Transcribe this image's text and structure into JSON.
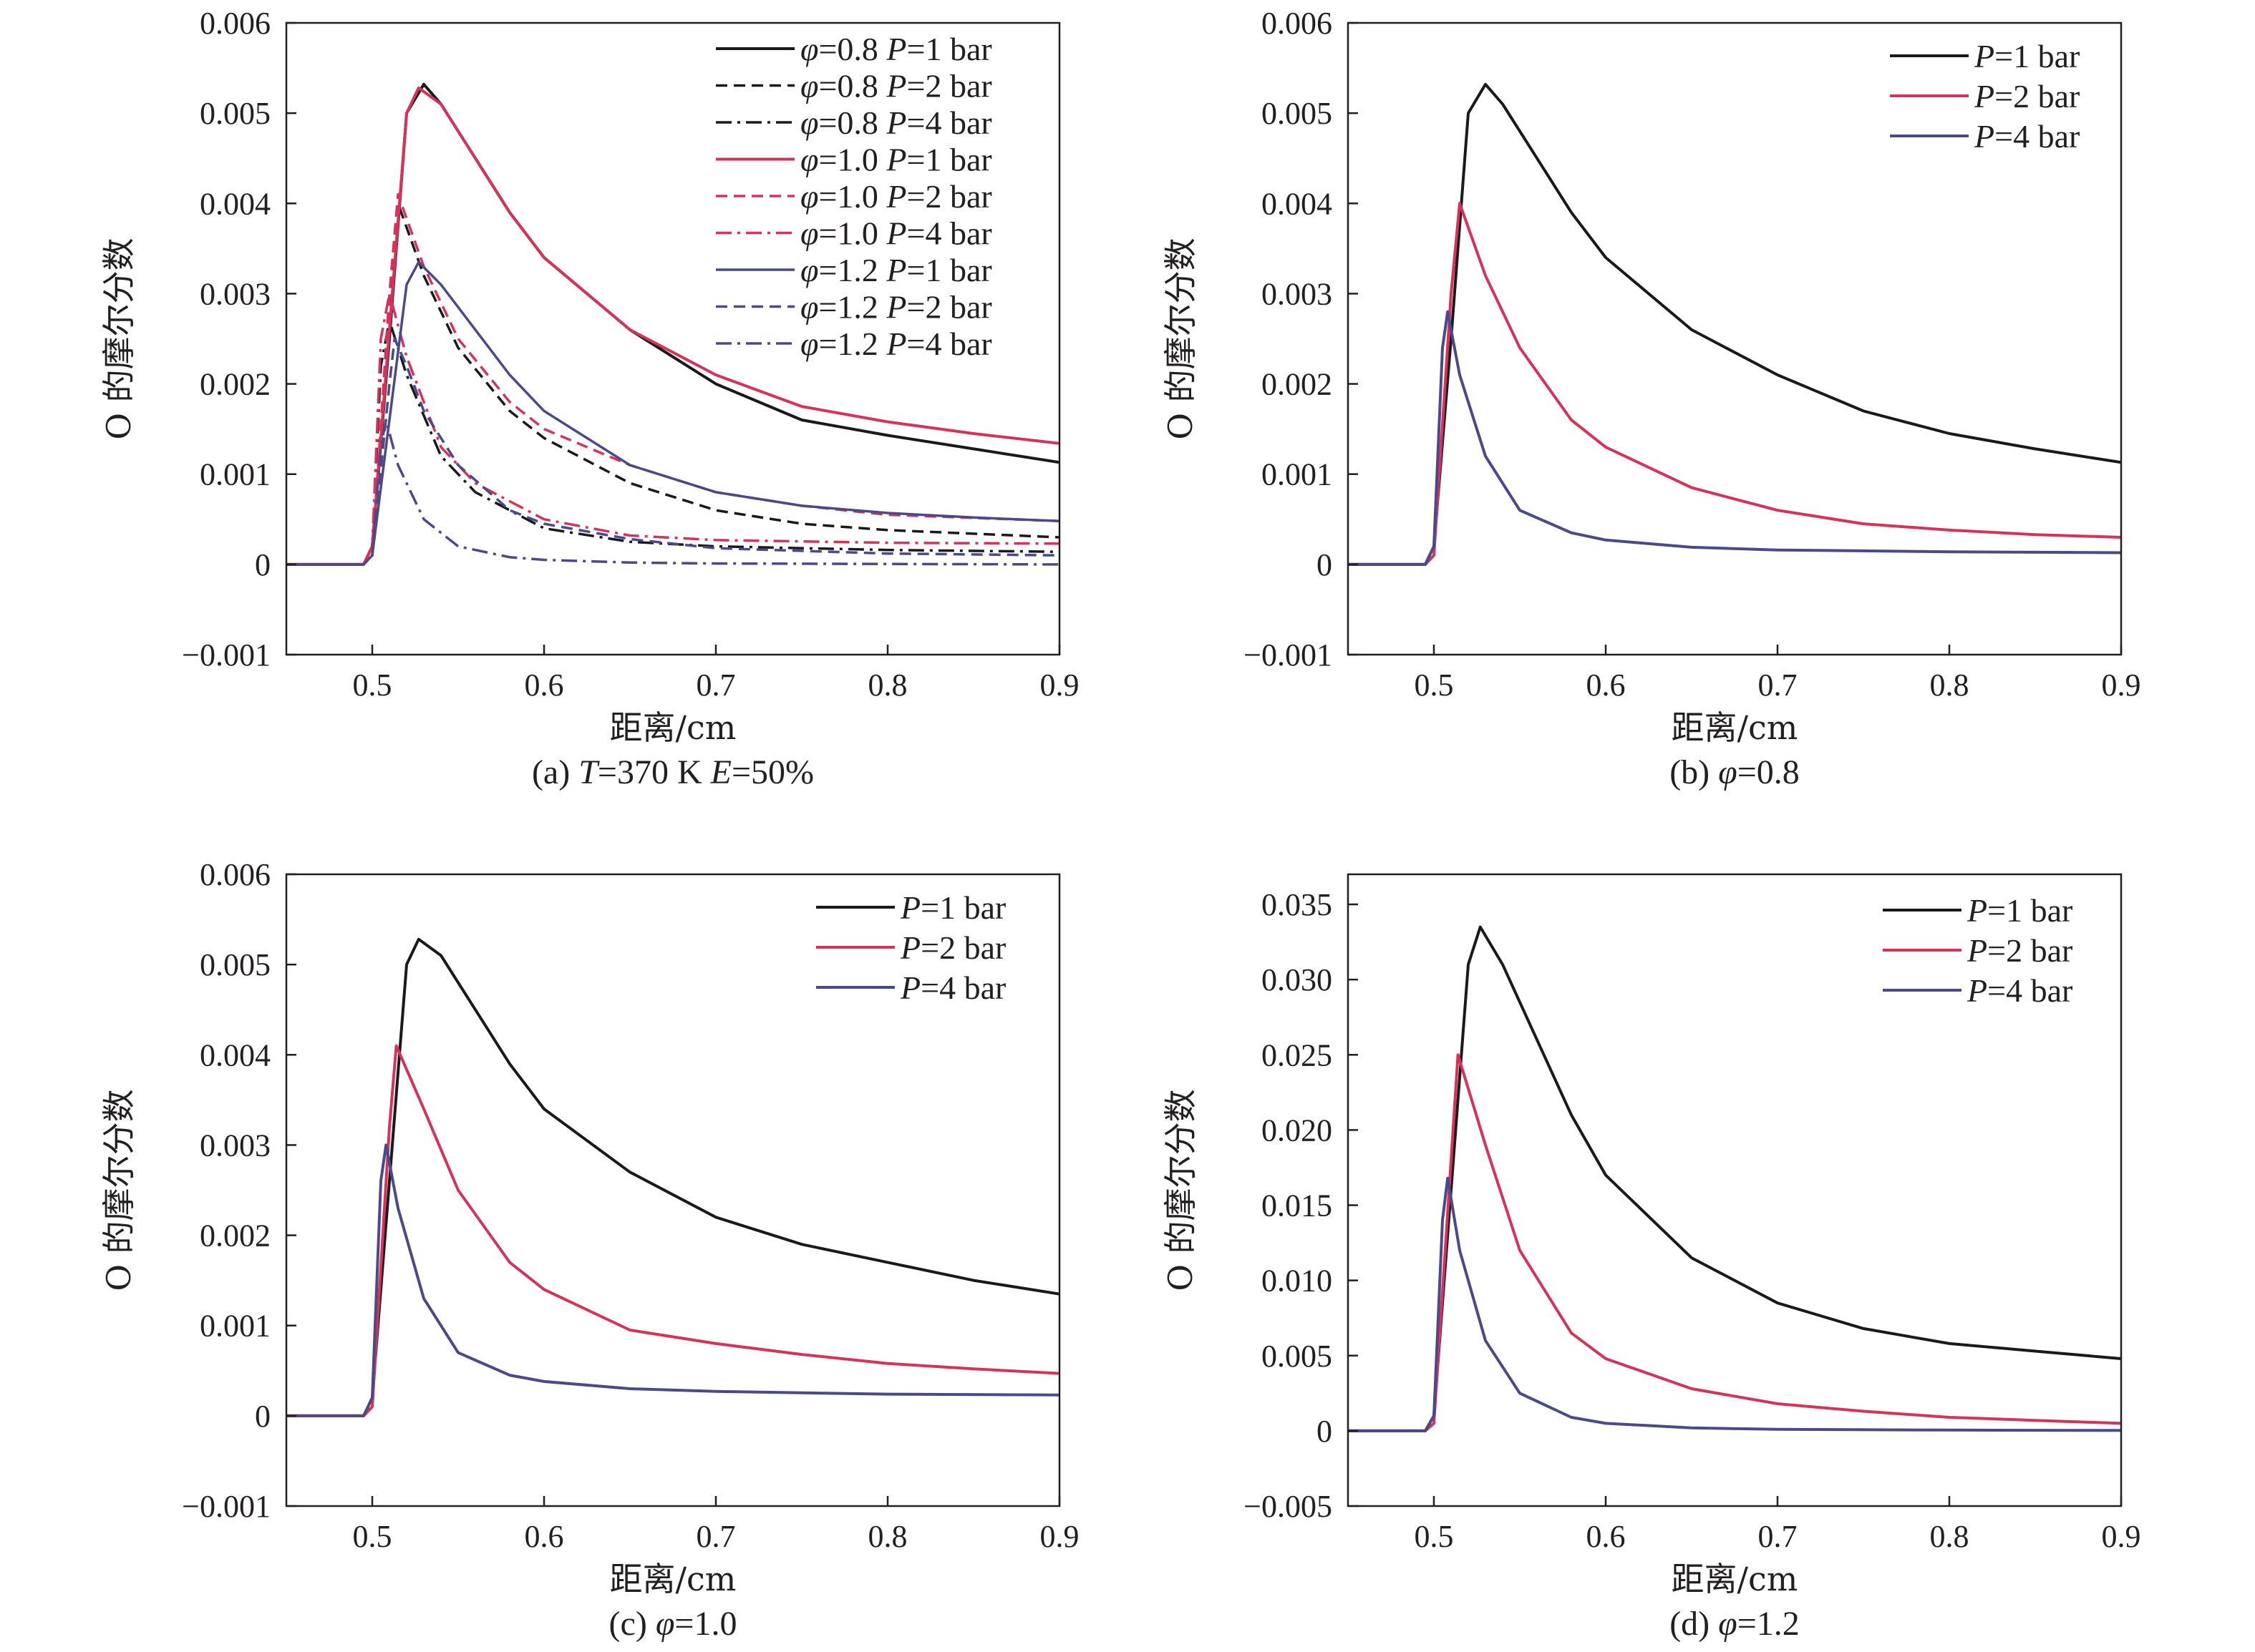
{
  "chart_data": [
    {
      "type": "line",
      "caption": "(a) T=370 K E=50%",
      "caption_parts": [
        "(a) ",
        "T",
        "=370 K ",
        "E",
        "=50%"
      ],
      "xlabel": "距离/cm",
      "ylabel": "O 的摩尔分数",
      "xlim": [
        0.45,
        0.9
      ],
      "ylim": [
        -0.001,
        0.006
      ],
      "xticks": [
        "0.5",
        "0.6",
        "0.7",
        "0.8",
        "0.9"
      ],
      "yticks": [
        "−0.001",
        "0",
        "0.001",
        "0.002",
        "0.003",
        "0.004",
        "0.005",
        "0.006"
      ],
      "grid": false,
      "legend_position": "top-right",
      "series": [
        {
          "name": "φ=0.8 P=1 bar",
          "phi": "0.8",
          "p": "1",
          "color": "#1a1a1a",
          "dash": "solid",
          "width": 4,
          "x": [
            0.45,
            0.495,
            0.5,
            0.51,
            0.52,
            0.53,
            0.54,
            0.56,
            0.58,
            0.6,
            0.65,
            0.7,
            0.75,
            0.8,
            0.85,
            0.9
          ],
          "y": [
            0,
            0,
            0.0002,
            0.0025,
            0.005,
            0.00532,
            0.0051,
            0.0045,
            0.0039,
            0.0034,
            0.0026,
            0.002,
            0.0016,
            0.00143,
            0.00128,
            0.00113
          ]
        },
        {
          "name": "φ=0.8 P=2 bar",
          "phi": "0.8",
          "p": "2",
          "color": "#1a1a1a",
          "dash": "16,9",
          "width": 3.5,
          "x": [
            0.45,
            0.495,
            0.5,
            0.51,
            0.515,
            0.53,
            0.55,
            0.58,
            0.6,
            0.65,
            0.7,
            0.75,
            0.8,
            0.9
          ],
          "y": [
            0,
            0,
            0.0001,
            0.0028,
            0.004,
            0.0032,
            0.0024,
            0.0017,
            0.0014,
            0.0009,
            0.0006,
            0.00045,
            0.00038,
            0.0003
          ]
        },
        {
          "name": "φ=0.8 P=4 bar",
          "phi": "0.8",
          "p": "4",
          "color": "#1a1a1a",
          "dash": "22,8,4,8",
          "width": 3.5,
          "x": [
            0.45,
            0.495,
            0.5,
            0.505,
            0.51,
            0.52,
            0.54,
            0.56,
            0.6,
            0.65,
            0.7,
            0.8,
            0.9
          ],
          "y": [
            0,
            0,
            0.0002,
            0.0022,
            0.0027,
            0.0021,
            0.0012,
            0.0008,
            0.0004,
            0.00025,
            0.0002,
            0.00016,
            0.00014
          ]
        },
        {
          "name": "φ=1.0 P=1 bar",
          "phi": "1.0",
          "p": "1",
          "color": "#d6325a",
          "dash": "solid",
          "width": 4,
          "x": [
            0.45,
            0.495,
            0.5,
            0.51,
            0.52,
            0.527,
            0.54,
            0.56,
            0.58,
            0.6,
            0.65,
            0.7,
            0.75,
            0.8,
            0.85,
            0.9
          ],
          "y": [
            0,
            0,
            0.0002,
            0.0026,
            0.005,
            0.00528,
            0.0051,
            0.0045,
            0.0039,
            0.0034,
            0.0026,
            0.0021,
            0.00175,
            0.00158,
            0.00145,
            0.00134
          ]
        },
        {
          "name": "φ=1.0 P=2 bar",
          "phi": "1.0",
          "p": "2",
          "color": "#d6325a",
          "dash": "16,9",
          "width": 3.5,
          "x": [
            0.45,
            0.495,
            0.5,
            0.51,
            0.515,
            0.53,
            0.55,
            0.58,
            0.6,
            0.65,
            0.7,
            0.75,
            0.8,
            0.9
          ],
          "y": [
            0,
            0,
            0.0001,
            0.003,
            0.0041,
            0.0033,
            0.0025,
            0.0018,
            0.0015,
            0.0011,
            0.0008,
            0.00065,
            0.00055,
            0.00048
          ]
        },
        {
          "name": "φ=1.0 P=4 bar",
          "phi": "1.0",
          "p": "4",
          "color": "#d6325a",
          "dash": "22,8,4,8",
          "width": 3.5,
          "x": [
            0.45,
            0.495,
            0.5,
            0.505,
            0.51,
            0.52,
            0.54,
            0.56,
            0.6,
            0.65,
            0.7,
            0.8,
            0.9
          ],
          "y": [
            0,
            0,
            0.0002,
            0.0025,
            0.003,
            0.0023,
            0.0013,
            0.0009,
            0.0005,
            0.00032,
            0.00027,
            0.00024,
            0.00023
          ]
        },
        {
          "name": "φ=1.2 P=1 bar",
          "phi": "1.2",
          "p": "1",
          "color": "#4a4a8a",
          "dash": "solid",
          "width": 3.5,
          "x": [
            0.45,
            0.495,
            0.5,
            0.51,
            0.52,
            0.527,
            0.54,
            0.56,
            0.58,
            0.6,
            0.65,
            0.7,
            0.75,
            0.8,
            0.85,
            0.9
          ],
          "y": [
            0,
            0,
            0.0001,
            0.0016,
            0.0031,
            0.00335,
            0.0031,
            0.0026,
            0.0021,
            0.0017,
            0.0011,
            0.0008,
            0.00065,
            0.00057,
            0.00052,
            0.00048
          ]
        },
        {
          "name": "φ=1.2 P=2 bar",
          "phi": "1.2",
          "p": "2",
          "color": "#4a4a8a",
          "dash": "16,9",
          "width": 3.5,
          "x": [
            0.45,
            0.495,
            0.5,
            0.51,
            0.513,
            0.52,
            0.53,
            0.55,
            0.58,
            0.6,
            0.65,
            0.7,
            0.8,
            0.9
          ],
          "y": [
            0,
            0,
            0.0001,
            0.002,
            0.0025,
            0.0022,
            0.0017,
            0.0011,
            0.0006,
            0.00045,
            0.00028,
            0.00018,
            0.00012,
            0.0001
          ]
        },
        {
          "name": "φ=1.2 P=4 bar",
          "phi": "1.2",
          "p": "4",
          "color": "#4a4a8a",
          "dash": "22,8,4,8",
          "width": 3.5,
          "x": [
            0.45,
            0.495,
            0.5,
            0.505,
            0.508,
            0.515,
            0.53,
            0.55,
            0.58,
            0.6,
            0.65,
            0.7,
            0.9
          ],
          "y": [
            0,
            0,
            0.0001,
            0.0013,
            0.0016,
            0.0011,
            0.0005,
            0.0002,
            8e-05,
            5e-05,
            2e-05,
            1e-05,
            0
          ]
        }
      ]
    },
    {
      "type": "line",
      "caption": "(b) φ=0.8",
      "caption_parts": [
        "(b) ",
        "φ",
        "=0.8"
      ],
      "xlabel": "距离/cm",
      "ylabel": "O 的摩尔分数",
      "xlim": [
        0.45,
        0.9
      ],
      "ylim": [
        -0.001,
        0.006
      ],
      "xticks": [
        "0.5",
        "0.6",
        "0.7",
        "0.8",
        "0.9"
      ],
      "yticks": [
        "−0.001",
        "0",
        "0.001",
        "0.002",
        "0.003",
        "0.004",
        "0.005",
        "0.006"
      ],
      "grid": false,
      "legend_position": "top-right",
      "series": [
        {
          "name": "P=1 bar",
          "p": "1",
          "color": "#1a1a1a",
          "dash": "solid",
          "width": 4,
          "x": [
            0.45,
            0.495,
            0.5,
            0.51,
            0.52,
            0.53,
            0.54,
            0.56,
            0.58,
            0.6,
            0.65,
            0.7,
            0.75,
            0.8,
            0.85,
            0.9
          ],
          "y": [
            0,
            0,
            0.0002,
            0.0025,
            0.005,
            0.00532,
            0.0051,
            0.0045,
            0.0039,
            0.0034,
            0.0026,
            0.0021,
            0.0017,
            0.00145,
            0.00128,
            0.00113
          ]
        },
        {
          "name": "P=2 bar",
          "p": "2",
          "color": "#d6325a",
          "dash": "solid",
          "width": 4,
          "x": [
            0.45,
            0.495,
            0.5,
            0.51,
            0.515,
            0.53,
            0.55,
            0.58,
            0.6,
            0.65,
            0.7,
            0.75,
            0.8,
            0.85,
            0.9
          ],
          "y": [
            0,
            0,
            0.0001,
            0.003,
            0.004,
            0.0032,
            0.0024,
            0.0016,
            0.0013,
            0.00085,
            0.0006,
            0.00045,
            0.00038,
            0.00033,
            0.0003
          ]
        },
        {
          "name": "P=4 bar",
          "p": "4",
          "color": "#4a4a8a",
          "dash": "solid",
          "width": 4,
          "x": [
            0.45,
            0.495,
            0.5,
            0.505,
            0.508,
            0.515,
            0.53,
            0.55,
            0.58,
            0.6,
            0.65,
            0.7,
            0.8,
            0.9
          ],
          "y": [
            0,
            0,
            0.0002,
            0.0024,
            0.0028,
            0.0021,
            0.0012,
            0.0006,
            0.00035,
            0.00027,
            0.00019,
            0.00016,
            0.00014,
            0.00013
          ]
        }
      ]
    },
    {
      "type": "line",
      "caption": "(c) φ=1.0",
      "caption_parts": [
        "(c) ",
        "φ",
        "=1.0"
      ],
      "xlabel": "距离/cm",
      "ylabel": "O 的摩尔分数",
      "xlim": [
        0.45,
        0.9
      ],
      "ylim": [
        -0.001,
        0.006
      ],
      "xticks": [
        "0.5",
        "0.6",
        "0.7",
        "0.8",
        "0.9"
      ],
      "yticks": [
        "−0.001",
        "0",
        "0.001",
        "0.002",
        "0.003",
        "0.004",
        "0.005",
        "0.006"
      ],
      "grid": false,
      "legend_position": "top-right",
      "series": [
        {
          "name": "P=1 bar",
          "p": "1",
          "color": "#1a1a1a",
          "dash": "solid",
          "width": 4,
          "x": [
            0.45,
            0.495,
            0.5,
            0.51,
            0.52,
            0.527,
            0.54,
            0.56,
            0.58,
            0.6,
            0.65,
            0.7,
            0.75,
            0.8,
            0.85,
            0.9
          ],
          "y": [
            0,
            0,
            0.0002,
            0.0026,
            0.005,
            0.00528,
            0.0051,
            0.0045,
            0.0039,
            0.0034,
            0.0027,
            0.0022,
            0.0019,
            0.0017,
            0.0015,
            0.00135
          ]
        },
        {
          "name": "P=2 bar",
          "p": "2",
          "color": "#d6325a",
          "dash": "solid",
          "width": 4,
          "x": [
            0.45,
            0.495,
            0.5,
            0.51,
            0.514,
            0.53,
            0.55,
            0.58,
            0.6,
            0.65,
            0.7,
            0.75,
            0.8,
            0.85,
            0.9
          ],
          "y": [
            0,
            0,
            0.0001,
            0.0032,
            0.0041,
            0.0034,
            0.0025,
            0.0017,
            0.0014,
            0.00095,
            0.0008,
            0.00068,
            0.00058,
            0.00052,
            0.00047
          ]
        },
        {
          "name": "P=4 bar",
          "p": "4",
          "color": "#4a4a8a",
          "dash": "solid",
          "width": 4,
          "x": [
            0.45,
            0.495,
            0.5,
            0.505,
            0.508,
            0.515,
            0.53,
            0.55,
            0.58,
            0.6,
            0.65,
            0.7,
            0.8,
            0.9
          ],
          "y": [
            0,
            0,
            0.0002,
            0.0026,
            0.003,
            0.0023,
            0.0013,
            0.0007,
            0.00045,
            0.00038,
            0.0003,
            0.00027,
            0.00024,
            0.00023
          ]
        }
      ]
    },
    {
      "type": "line",
      "caption": "(d) φ=1.2",
      "caption_parts": [
        "(d) ",
        "φ",
        "=1.2"
      ],
      "xlabel": "距离/cm",
      "ylabel": "O 的摩尔分数",
      "xlim": [
        0.45,
        0.9
      ],
      "ylim": [
        -0.005,
        0.037
      ],
      "xticks": [
        "0.5",
        "0.6",
        "0.7",
        "0.8",
        "0.9"
      ],
      "yticks": [
        "−0.005",
        "0",
        "0.005",
        "0.010",
        "0.015",
        "0.020",
        "0.025",
        "0.030",
        "0.035"
      ],
      "grid": false,
      "legend_position": "top-right",
      "series": [
        {
          "name": "P=1 bar",
          "p": "1",
          "color": "#1a1a1a",
          "dash": "solid",
          "width": 4,
          "x": [
            0.45,
            0.495,
            0.5,
            0.51,
            0.52,
            0.527,
            0.54,
            0.56,
            0.58,
            0.6,
            0.65,
            0.7,
            0.75,
            0.8,
            0.85,
            0.9
          ],
          "y": [
            0,
            0,
            0.001,
            0.016,
            0.031,
            0.0335,
            0.031,
            0.026,
            0.021,
            0.017,
            0.0115,
            0.0085,
            0.0068,
            0.0058,
            0.0053,
            0.0048
          ]
        },
        {
          "name": "P=2 bar",
          "p": "2",
          "color": "#d6325a",
          "dash": "solid",
          "width": 4,
          "x": [
            0.45,
            0.495,
            0.5,
            0.51,
            0.514,
            0.53,
            0.55,
            0.58,
            0.6,
            0.65,
            0.7,
            0.75,
            0.8,
            0.85,
            0.9
          ],
          "y": [
            0,
            0,
            0.0005,
            0.018,
            0.025,
            0.019,
            0.012,
            0.0065,
            0.0048,
            0.0028,
            0.0018,
            0.0013,
            0.0009,
            0.0007,
            0.0005
          ]
        },
        {
          "name": "P=4 bar",
          "p": "4",
          "color": "#4a4a8a",
          "dash": "solid",
          "width": 4,
          "x": [
            0.45,
            0.495,
            0.5,
            0.505,
            0.508,
            0.515,
            0.53,
            0.55,
            0.58,
            0.6,
            0.65,
            0.7,
            0.8,
            0.9
          ],
          "y": [
            0,
            0,
            0.001,
            0.014,
            0.0168,
            0.012,
            0.006,
            0.0025,
            0.0009,
            0.0005,
            0.0002,
            0.0001,
            5e-05,
            3e-05
          ]
        }
      ]
    }
  ]
}
